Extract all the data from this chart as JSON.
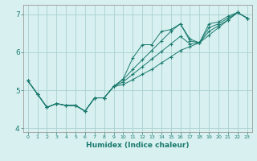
{
  "xlabel": "Humidex (Indice chaleur)",
  "x_values": [
    0,
    1,
    2,
    3,
    4,
    5,
    6,
    7,
    8,
    9,
    10,
    11,
    12,
    13,
    14,
    15,
    16,
    17,
    18,
    19,
    20,
    21,
    22,
    23
  ],
  "line1": [
    5.25,
    4.9,
    4.55,
    4.65,
    4.6,
    4.6,
    4.45,
    4.8,
    4.8,
    5.1,
    5.3,
    5.85,
    6.2,
    6.2,
    6.55,
    6.6,
    6.75,
    6.3,
    6.25,
    6.75,
    6.8,
    6.95,
    7.05,
    6.9
  ],
  "line2": [
    5.25,
    4.9,
    4.55,
    4.65,
    4.6,
    4.6,
    4.45,
    4.8,
    4.8,
    5.1,
    5.28,
    5.55,
    5.8,
    6.05,
    6.3,
    6.55,
    6.75,
    6.35,
    6.25,
    6.65,
    6.75,
    6.9,
    7.05,
    6.9
  ],
  "line3": [
    5.25,
    4.9,
    4.55,
    4.65,
    4.6,
    4.6,
    4.45,
    4.8,
    4.8,
    5.1,
    5.22,
    5.42,
    5.62,
    5.82,
    6.02,
    6.22,
    6.42,
    6.22,
    6.25,
    6.55,
    6.7,
    6.85,
    7.05,
    6.9
  ],
  "line4": [
    5.25,
    4.9,
    4.55,
    4.65,
    4.6,
    4.6,
    4.45,
    4.8,
    4.8,
    5.1,
    5.15,
    5.28,
    5.42,
    5.55,
    5.72,
    5.88,
    6.05,
    6.15,
    6.25,
    6.45,
    6.65,
    6.85,
    7.05,
    6.9
  ],
  "line_color": "#1a7a6e",
  "bg_color": "#d8f0f0",
  "grid_color": "#aad0d0",
  "ylim": [
    3.9,
    7.25
  ],
  "xlim": [
    -0.5,
    23.5
  ],
  "yticks": [
    4,
    5,
    6,
    7
  ],
  "xticks": [
    0,
    1,
    2,
    3,
    4,
    5,
    6,
    7,
    8,
    9,
    10,
    11,
    12,
    13,
    14,
    15,
    16,
    17,
    18,
    19,
    20,
    21,
    22,
    23
  ]
}
